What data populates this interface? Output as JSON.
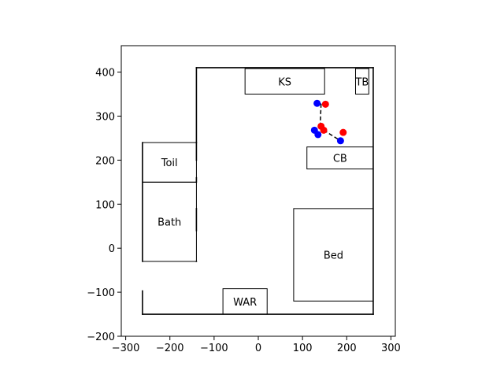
{
  "chart_data": {
    "type": "scatter",
    "title": "",
    "xlabel": "",
    "ylabel": "",
    "xlim": [
      -310,
      310
    ],
    "ylim": [
      -200,
      460
    ],
    "xticks": [
      -300,
      -200,
      -100,
      0,
      100,
      200,
      300
    ],
    "yticks": [
      -200,
      -100,
      0,
      100,
      200,
      300,
      400
    ],
    "xtick_labels": [
      "−300",
      "−200",
      "−100",
      "0",
      "100",
      "200",
      "300"
    ],
    "ytick_labels": [
      "−200",
      "−100",
      "0",
      "100",
      "200",
      "300",
      "400"
    ],
    "grid": false,
    "walls": [
      {
        "x": [
          -140,
          260
        ],
        "y": [
          410,
          410
        ]
      },
      {
        "x": [
          260,
          260
        ],
        "y": [
          410,
          -150
        ]
      },
      {
        "x": [
          260,
          -262
        ],
        "y": [
          -150,
          -150
        ]
      },
      {
        "x": [
          -262,
          -262
        ],
        "y": [
          -150,
          -97
        ]
      },
      {
        "x": [
          -262,
          -262
        ],
        "y": [
          -30,
          240
        ]
      },
      {
        "x": [
          -140,
          -140
        ],
        "y": [
          410,
          240
        ]
      },
      {
        "x": [
          -140,
          -140
        ],
        "y": [
          240,
          200
        ]
      },
      {
        "x": [
          -140,
          -140
        ],
        "y": [
          160,
          150
        ]
      },
      {
        "x": [
          -140,
          -140
        ],
        "y": [
          90,
          40
        ]
      },
      {
        "x": [
          -140,
          -140
        ],
        "y": [
          -30,
          -30
        ]
      }
    ],
    "rooms": [
      {
        "label": "KS",
        "x0": -30,
        "y0": 350,
        "x1": 150,
        "y1": 408
      },
      {
        "label": "TB",
        "x0": 220,
        "y0": 350,
        "x1": 250,
        "y1": 408
      },
      {
        "label": "Toil",
        "x0": -262,
        "y0": 150,
        "x1": -140,
        "y1": 240
      },
      {
        "label": "Bath",
        "x0": -262,
        "y0": -30,
        "x1": -140,
        "y1": 150
      },
      {
        "label": "CB",
        "x0": 110,
        "y0": 180,
        "x1": 260,
        "y1": 230
      },
      {
        "label": "Bed",
        "x0": 80,
        "y0": -120,
        "x1": 260,
        "y1": 90
      },
      {
        "label": "WAR",
        "x0": -80,
        "y0": -150,
        "x1": 20,
        "y1": -92
      }
    ],
    "series": [
      {
        "color": "#0000ff",
        "points": [
          [
            133,
            329
          ],
          [
            127,
            268
          ],
          [
            135,
            258
          ],
          [
            186,
            244
          ]
        ]
      },
      {
        "color": "#ff0000",
        "points": [
          [
            152,
            327
          ],
          [
            142,
            277
          ],
          [
            148,
            268
          ],
          [
            192,
            263
          ]
        ]
      }
    ],
    "links": [
      {
        "from": [
          133,
          329
        ],
        "to": [
          152,
          327
        ]
      },
      {
        "from": [
          142,
          328
        ],
        "to": [
          140,
          277
        ]
      },
      {
        "from": [
          148,
          268
        ],
        "to": [
          186,
          244
        ]
      }
    ]
  }
}
